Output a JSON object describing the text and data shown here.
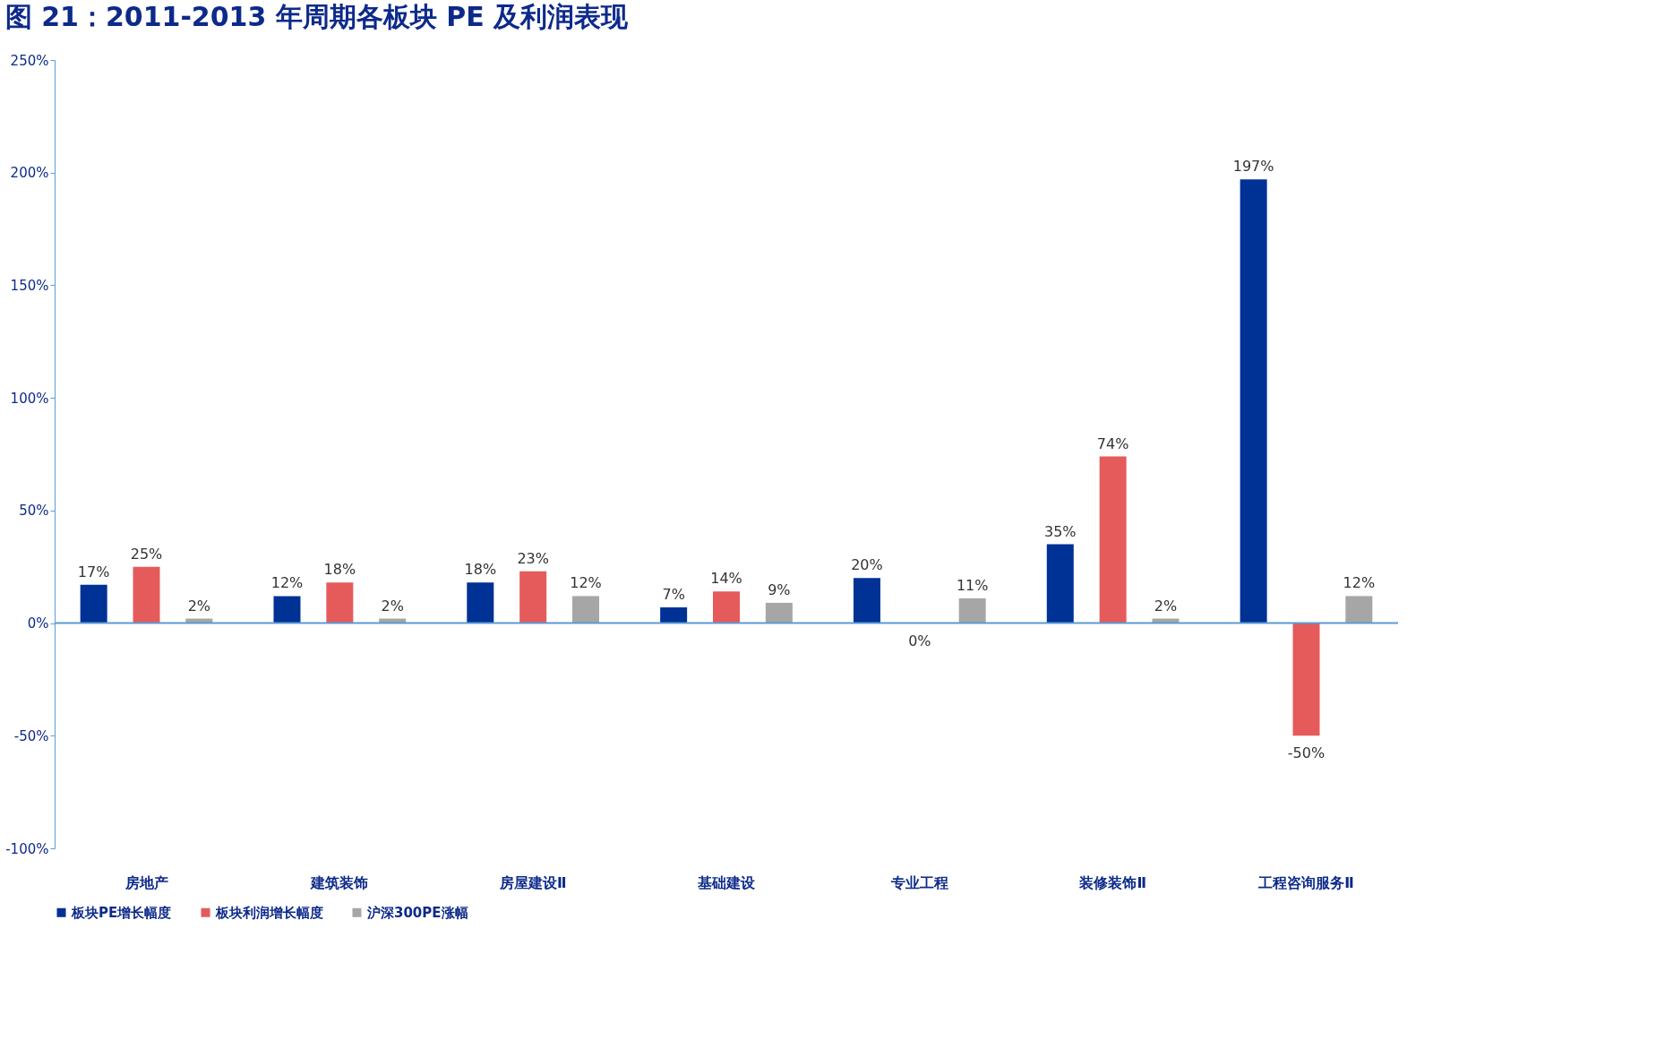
{
  "chart_data": {
    "type": "bar",
    "title": "图 21：2011-2013 年周期各板块 PE 及利润表现",
    "categories": [
      "房地产",
      "建筑装饰",
      "房屋建设Ⅱ",
      "基础建设",
      "专业工程",
      "装修装饰Ⅱ",
      "工程咨询服务Ⅱ"
    ],
    "series": [
      {
        "name": "板块PE增长幅度",
        "color": "#003194",
        "values": [
          17,
          12,
          18,
          7,
          20,
          35,
          197
        ],
        "value_labels": [
          "17%",
          "12%",
          "18%",
          "7%",
          "20%",
          "35%",
          "197%"
        ]
      },
      {
        "name": "板块利润增长幅度",
        "color": "#e55b5b",
        "values": [
          25,
          18,
          23,
          14,
          0,
          74,
          -50
        ],
        "value_labels": [
          "25%",
          "18%",
          "23%",
          "14%",
          "0%",
          "74%",
          "-50%"
        ]
      },
      {
        "name": "沪深300PE涨幅",
        "color": "#a6a6a6",
        "values": [
          2,
          2,
          12,
          9,
          11,
          2,
          12
        ],
        "value_labels": [
          "2%",
          "2%",
          "12%",
          "9%",
          "11%",
          "2%",
          "12%"
        ]
      }
    ],
    "ylim": [
      -100,
      250
    ],
    "yticks": [
      {
        "value": -100,
        "label": "-100%"
      },
      {
        "value": -50,
        "label": "-50%"
      },
      {
        "value": 0,
        "label": "0%"
      },
      {
        "value": 50,
        "label": "50%"
      },
      {
        "value": 100,
        "label": "100%"
      },
      {
        "value": 150,
        "label": "150%"
      },
      {
        "value": 200,
        "label": "200%"
      },
      {
        "value": 250,
        "label": "250%"
      }
    ],
    "ref_lines": [
      {
        "axis": "y",
        "value": 0,
        "color": "#5b9bd5"
      }
    ],
    "grid": false,
    "legend": "bottom"
  }
}
